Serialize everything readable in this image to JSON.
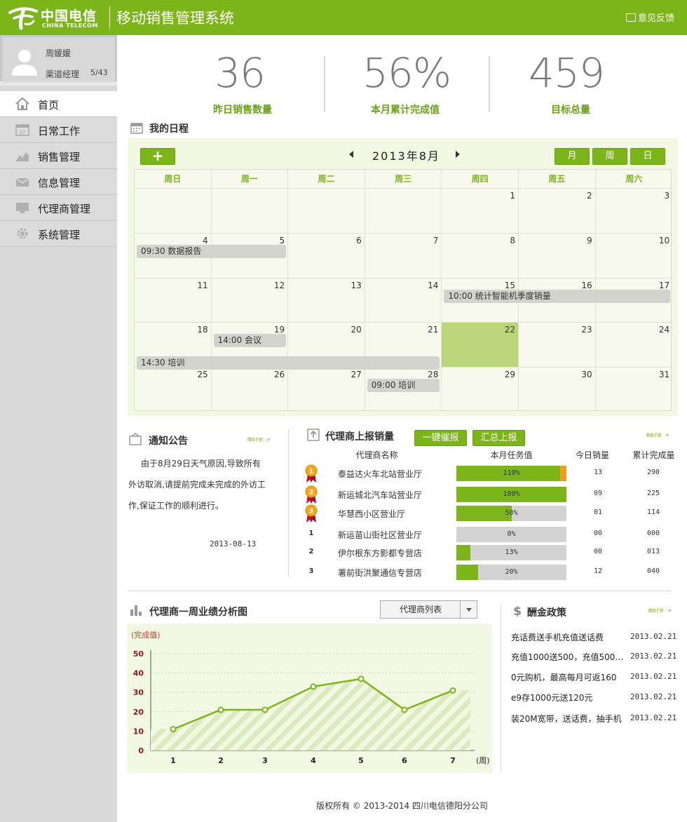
{
  "header": {
    "logo_cn": "中国电信",
    "logo_en": "CHINA TELECOM",
    "title": "移动销售管理系统",
    "feedback": "意见反馈"
  },
  "user": {
    "name": "周媛媛",
    "role": "渠道经理",
    "count": "5/43"
  },
  "nav": [
    {
      "label": "首页",
      "icon": "home-icon",
      "active": true
    },
    {
      "label": "日常工作",
      "icon": "calendar-icon",
      "active": false
    },
    {
      "label": "销售管理",
      "icon": "chart-icon",
      "active": false
    },
    {
      "label": "信息管理",
      "icon": "mail-icon",
      "active": false
    },
    {
      "label": "代理商管理",
      "icon": "monitor-icon",
      "active": false
    },
    {
      "label": "系统管理",
      "icon": "gear-icon",
      "active": false
    }
  ],
  "stats": [
    {
      "value": "36",
      "label": "昨日销售数量"
    },
    {
      "value": "56%",
      "label": "本月累计完成值"
    },
    {
      "value": "459",
      "label": "目标总量"
    }
  ],
  "schedule": {
    "title": "我的日程",
    "add_label": "+",
    "month_title": "2013年8月",
    "view_buttons": [
      "月",
      "周",
      "日"
    ],
    "weekdays": [
      "周日",
      "周一",
      "周二",
      "周三",
      "周四",
      "周五",
      "周六"
    ],
    "days": [
      "",
      "",
      "",
      "",
      "1",
      "2",
      "3",
      "4",
      "5",
      "6",
      "7",
      "8",
      "9",
      "10",
      "11",
      "12",
      "13",
      "14",
      "15",
      "16",
      "17",
      "18",
      "19",
      "20",
      "21",
      "22",
      "23",
      "24",
      "25",
      "26",
      "27",
      "28",
      "29",
      "30",
      "31"
    ],
    "today": "22",
    "events": [
      {
        "text": "09:30 数据报告",
        "start_col": 0,
        "span": 2,
        "row": 1,
        "lane": 0
      },
      {
        "text": "10:00 统计智能机季度销量",
        "start_col": 4,
        "span": 3,
        "row": 2,
        "lane": 0
      },
      {
        "text": "14:00 会议",
        "start_col": 1,
        "span": 1,
        "row": 3,
        "lane": 0
      },
      {
        "text": "14:30 培训",
        "start_col": 0,
        "span": 4,
        "row": 3,
        "lane": 1
      },
      {
        "text": "09:00 培训",
        "start_col": 3,
        "span": 1,
        "row": 4,
        "lane": 0
      }
    ]
  },
  "notice": {
    "title": "通知公告",
    "more": "more",
    "text": "由于8月29日天气原因,导致所有外访取消,请提前完成未完成的外访工作,保证工作的顺利进行。",
    "date": "2013-08-13"
  },
  "agent_sales": {
    "title": "代理商上报销量",
    "btn_remind": "一键催报",
    "btn_summary": "汇总上报",
    "more": "more",
    "headers": [
      "代理商名称",
      "本月任务值",
      "今日销量",
      "累计完成量"
    ],
    "rows": [
      {
        "rank": "1",
        "medal": true,
        "name": "泰益达火车北站营业厅",
        "pct": 110,
        "pct_label": "110%",
        "today": "13",
        "total": "290"
      },
      {
        "rank": "2",
        "medal": true,
        "name": "新运城北汽车站营业厅",
        "pct": 100,
        "pct_label": "100%",
        "today": "09",
        "total": "225"
      },
      {
        "rank": "3",
        "medal": true,
        "name": "华慧西小区营业厅",
        "pct": 50,
        "pct_label": "50%",
        "today": "01",
        "total": "114"
      },
      {
        "rank": "1",
        "medal": false,
        "name": "新运苗山街社区营业厅",
        "pct": 0,
        "pct_label": "0%",
        "today": "00",
        "total": "000"
      },
      {
        "rank": "2",
        "medal": false,
        "name": "伊尔根东方影都专营店",
        "pct": 13,
        "pct_label": "13%",
        "today": "00",
        "total": "013"
      },
      {
        "rank": "3",
        "medal": false,
        "name": "署前街洪聚通信专营店",
        "pct": 20,
        "pct_label": "20%",
        "today": "12",
        "total": "040"
      }
    ]
  },
  "chart_section": {
    "title": "代理商一周业绩分析图",
    "select_value": "代理商列表"
  },
  "chart_data": {
    "type": "line",
    "ylabel": "(完成值)",
    "xlabel": "(周)",
    "x": [
      "1",
      "2",
      "3",
      "4",
      "5",
      "6",
      "7"
    ],
    "values": [
      11,
      21,
      21,
      33,
      37,
      21,
      31
    ],
    "ylim": [
      0,
      50
    ],
    "yticks": [
      "0",
      "10",
      "20",
      "30",
      "40",
      "50"
    ],
    "grid": true,
    "line_color": "#7cb519"
  },
  "policy": {
    "title": "酬金政策",
    "more": "more",
    "items": [
      {
        "text": "充话费送手机充值送话费",
        "date": "2013.02.21"
      },
      {
        "text": "充值1000送500，充值500送…",
        "date": "2013.02.21"
      },
      {
        "text": "0元购机，最高每月可返160",
        "date": "2013.02.21"
      },
      {
        "text": "e9存1000元送120元",
        "date": "2013.02.21"
      },
      {
        "text": "装20M宽带，送话费，抽手机",
        "date": "2013.02.21"
      }
    ]
  },
  "footer": "版权所有 © 2013-2014 四川电信德阳分公司",
  "colors": {
    "brand": "#7cb519",
    "accent_orange": "#f39a1e"
  }
}
